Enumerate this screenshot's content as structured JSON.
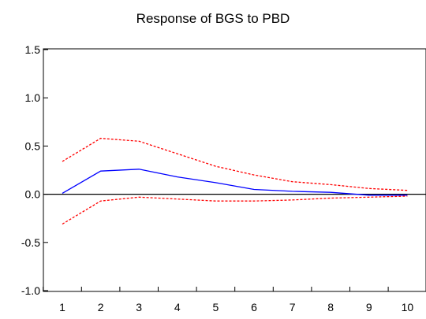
{
  "chart_data": {
    "type": "line",
    "title": "Response of BGS to PBD",
    "xlabel": "",
    "ylabel": "",
    "x": [
      1,
      2,
      3,
      4,
      5,
      6,
      7,
      8,
      9,
      10
    ],
    "xlim": [
      0.5,
      10.5
    ],
    "ylim": [
      -1.0,
      1.5
    ],
    "yticks": [
      "1.5",
      "1.0",
      "0.5",
      "0.0",
      "-0.5",
      "-1.0"
    ],
    "ytick_values": [
      1.5,
      1.0,
      0.5,
      0.0,
      -0.5,
      -1.0
    ],
    "xticks": [
      "1",
      "2",
      "3",
      "4",
      "5",
      "6",
      "7",
      "8",
      "9",
      "10"
    ],
    "grid": false,
    "zero_line": true,
    "series": [
      {
        "role": "response",
        "color": "#0000ff",
        "style": "solid",
        "values": [
          0.01,
          0.24,
          0.26,
          0.18,
          0.12,
          0.05,
          0.03,
          0.02,
          -0.01,
          -0.01
        ]
      },
      {
        "role": "upper-band",
        "color": "#ff0000",
        "style": "dashed",
        "values": [
          0.34,
          0.58,
          0.55,
          0.42,
          0.29,
          0.2,
          0.13,
          0.1,
          0.06,
          0.04
        ]
      },
      {
        "role": "lower-band",
        "color": "#ff0000",
        "style": "dashed",
        "values": [
          -0.31,
          -0.07,
          -0.03,
          -0.05,
          -0.07,
          -0.07,
          -0.06,
          -0.04,
          -0.03,
          -0.02
        ]
      }
    ]
  }
}
